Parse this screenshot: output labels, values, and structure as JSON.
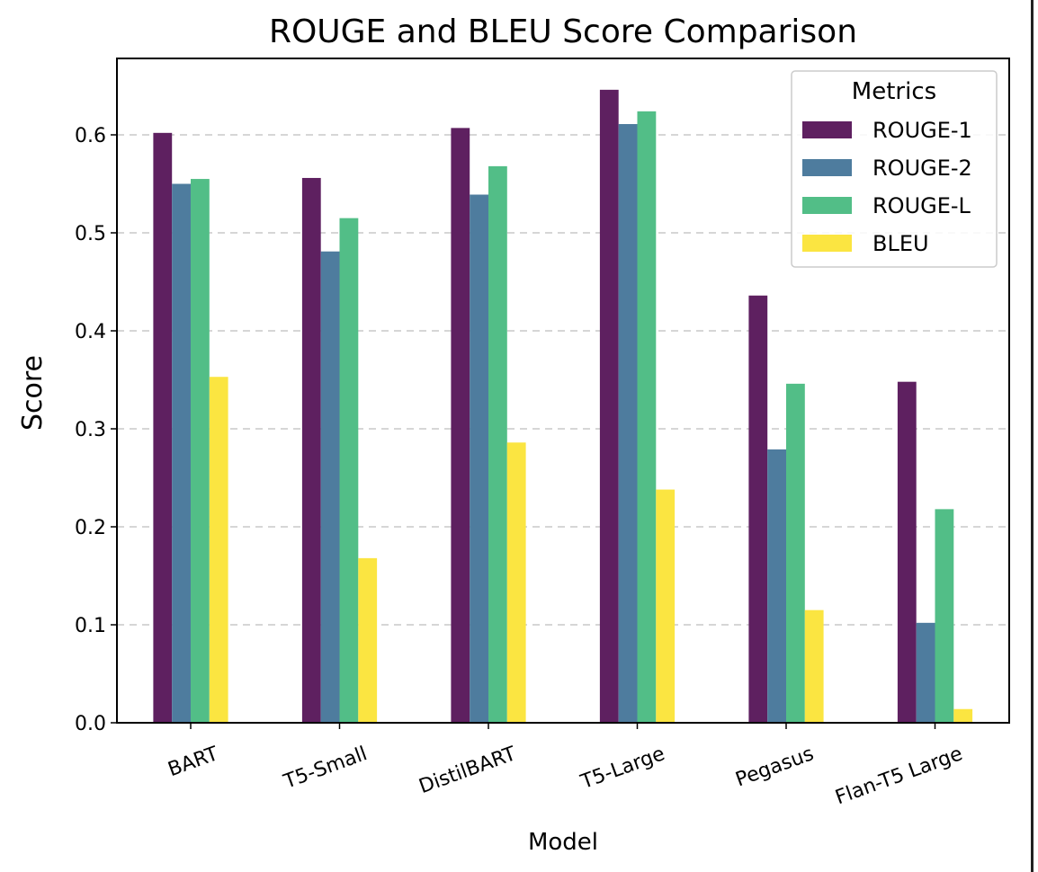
{
  "chart_data": {
    "type": "bar",
    "title": "ROUGE and BLEU Score Comparison",
    "xlabel": "Model",
    "ylabel": "Score",
    "categories": [
      "BART",
      "T5-Small",
      "DistilBART",
      "T5-Large",
      "Pegasus",
      "Flan-T5 Large"
    ],
    "series": [
      {
        "name": "ROUGE-1",
        "color": "#5e2060",
        "values": [
          0.602,
          0.556,
          0.607,
          0.646,
          0.436,
          0.348
        ]
      },
      {
        "name": "ROUGE-2",
        "color": "#4e7c9e",
        "values": [
          0.55,
          0.481,
          0.539,
          0.611,
          0.279,
          0.102
        ]
      },
      {
        "name": "ROUGE-L",
        "color": "#52be87",
        "values": [
          0.555,
          0.515,
          0.568,
          0.624,
          0.346,
          0.218
        ]
      },
      {
        "name": "BLEU",
        "color": "#fbe541",
        "values": [
          0.353,
          0.168,
          0.286,
          0.238,
          0.115,
          0.014
        ]
      }
    ],
    "yticks": [
      "0.0",
      "0.1",
      "0.2",
      "0.3",
      "0.4",
      "0.5",
      "0.6"
    ],
    "ylim": [
      0,
      0.678
    ],
    "grid": "y-dashed",
    "legend": {
      "title": "Metrics",
      "placement": "upper right"
    }
  }
}
